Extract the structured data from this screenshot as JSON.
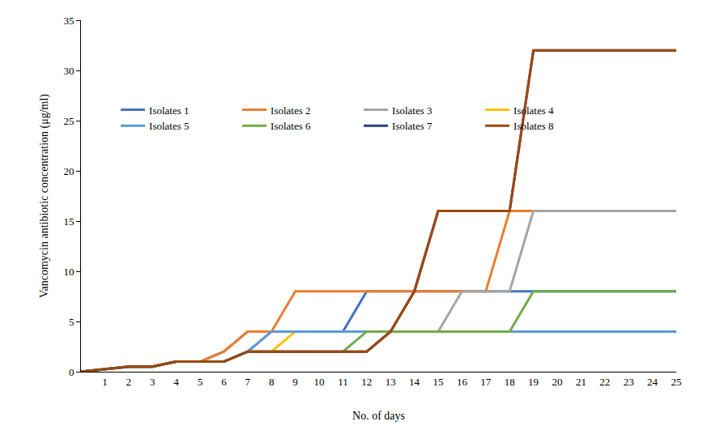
{
  "chart_data": {
    "type": "line",
    "x_label": "No. of days",
    "y_label": "Vancomycin antibiotic concentration (μg/ml)",
    "x": [
      0,
      1,
      2,
      3,
      4,
      5,
      6,
      7,
      8,
      9,
      10,
      11,
      12,
      13,
      14,
      15,
      16,
      17,
      18,
      19,
      20,
      21,
      22,
      23,
      24,
      25
    ],
    "xlim": [
      0,
      25
    ],
    "xticks": [
      1,
      2,
      3,
      4,
      5,
      6,
      7,
      8,
      9,
      10,
      11,
      12,
      13,
      14,
      15,
      16,
      17,
      18,
      19,
      20,
      21,
      22,
      23,
      24,
      25
    ],
    "ylim": [
      0,
      35
    ],
    "yticks": [
      0,
      5,
      10,
      15,
      20,
      25,
      30,
      35
    ],
    "grid": false,
    "legend": "upper left",
    "series": [
      {
        "name": "Isolates 1",
        "color": "#4472c4",
        "values": [
          0,
          0.25,
          0.5,
          0.5,
          1,
          1,
          2,
          4,
          4,
          4,
          4,
          4,
          8,
          8,
          8,
          8,
          8,
          8,
          8,
          8,
          8,
          8,
          8,
          8,
          8,
          8
        ]
      },
      {
        "name": "Isolates 2",
        "color": "#ed7d31",
        "values": [
          0,
          0.25,
          0.5,
          0.5,
          1,
          1,
          2,
          4,
          4,
          8,
          8,
          8,
          8,
          8,
          8,
          8,
          8,
          8,
          16,
          16,
          16,
          16,
          16,
          16,
          16,
          16
        ]
      },
      {
        "name": "Isolates 3",
        "color": "#a5a5a5",
        "values": [
          0,
          0.25,
          0.5,
          0.5,
          1,
          1,
          1,
          2,
          4,
          4,
          4,
          4,
          4,
          4,
          4,
          4,
          8,
          8,
          8,
          16,
          16,
          16,
          16,
          16,
          16,
          16
        ]
      },
      {
        "name": "Isolates 4",
        "color": "#ffc000",
        "values": [
          0,
          0.25,
          0.5,
          0.5,
          1,
          1,
          1,
          2,
          2,
          4,
          4,
          4,
          4,
          4,
          4,
          4,
          4,
          4,
          4,
          4,
          4,
          4,
          4,
          4,
          4,
          4
        ]
      },
      {
        "name": "Isolates 5",
        "color": "#5b9bd5",
        "values": [
          0,
          0.25,
          0.5,
          0.5,
          1,
          1,
          1,
          2,
          4,
          4,
          4,
          4,
          4,
          4,
          4,
          4,
          4,
          4,
          4,
          4,
          4,
          4,
          4,
          4,
          4,
          4
        ]
      },
      {
        "name": "Isolates 6",
        "color": "#70ad47",
        "values": [
          0,
          0.25,
          0.5,
          0.5,
          1,
          1,
          1,
          2,
          2,
          2,
          2,
          2,
          4,
          4,
          4,
          4,
          4,
          4,
          4,
          8,
          8,
          8,
          8,
          8,
          8,
          8
        ]
      },
      {
        "name": "Isolates 7",
        "color": "#264478",
        "values": [
          0,
          0.25,
          0.5,
          0.5,
          1,
          1,
          1,
          2,
          2,
          2,
          2,
          2,
          2,
          4,
          8,
          16,
          16,
          16,
          16,
          32,
          32,
          32,
          32,
          32,
          32,
          32
        ]
      },
      {
        "name": "Isolates 8",
        "color": "#9e480e",
        "values": [
          0,
          0.25,
          0.5,
          0.5,
          1,
          1,
          1,
          2,
          2,
          2,
          2,
          2,
          2,
          4,
          8,
          16,
          16,
          16,
          16,
          32,
          32,
          32,
          32,
          32,
          32,
          32
        ]
      }
    ]
  }
}
